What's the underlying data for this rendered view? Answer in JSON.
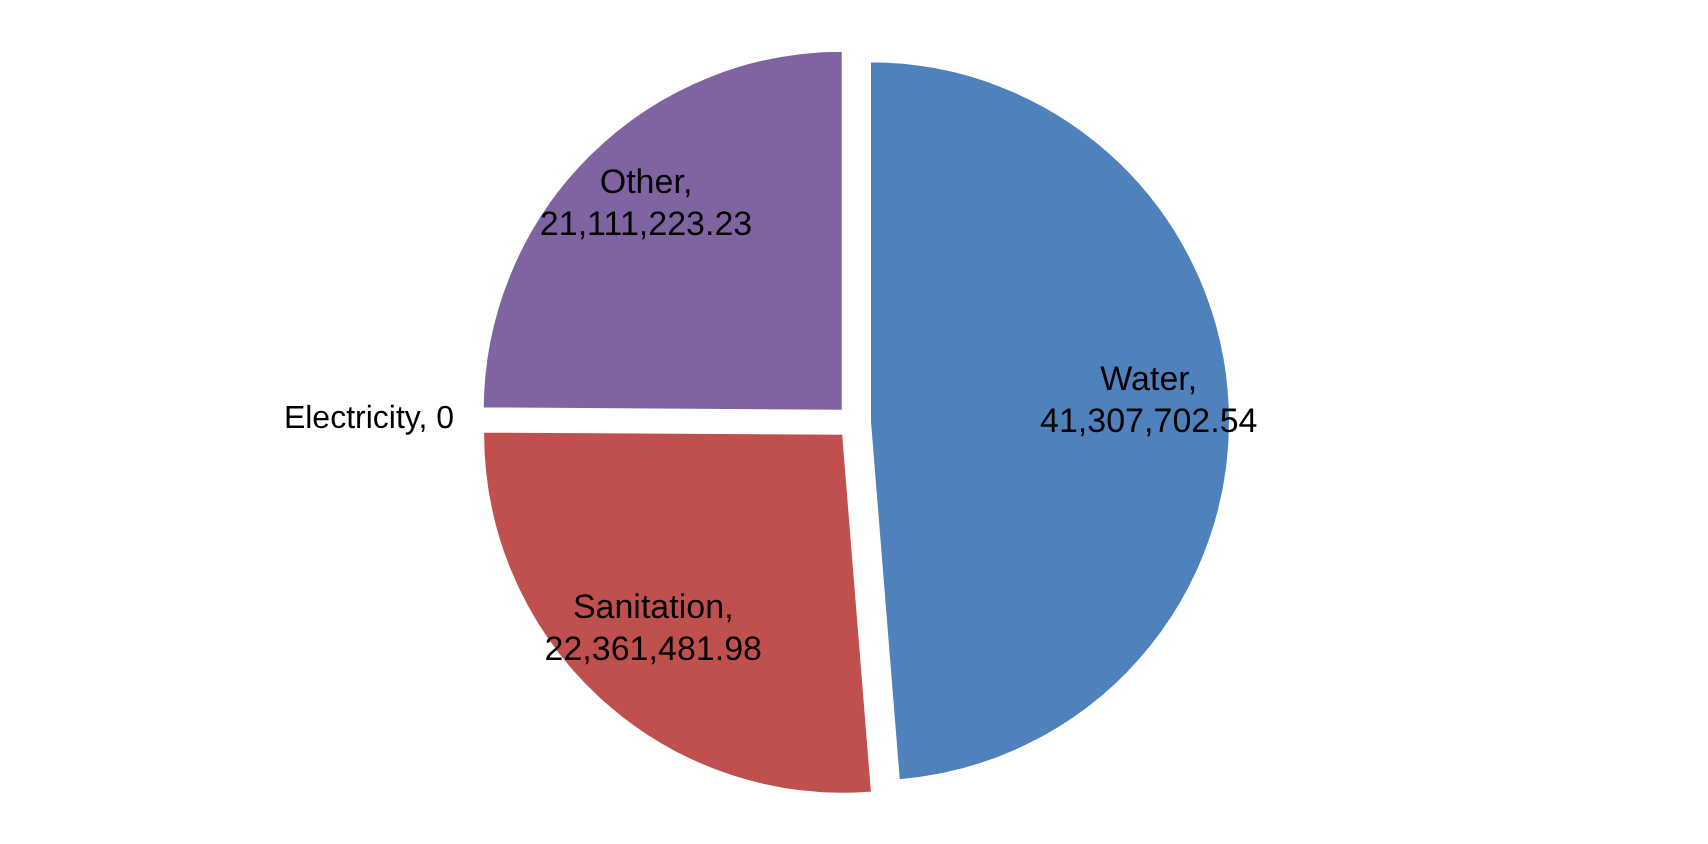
{
  "chart_data": {
    "type": "pie",
    "categories": [
      "Water",
      "Sanitation",
      "Electricity",
      "Other"
    ],
    "values": [
      41307702.54,
      22361481.98,
      0,
      21111223.23
    ],
    "value_labels": [
      ", 41,307,702.54",
      ", 22,361,481.98",
      ", 0",
      ", 21,111,223.23"
    ],
    "colors": [
      "#4f81bd",
      "#c0504d",
      "#9bbb59",
      "#8064a2"
    ]
  }
}
